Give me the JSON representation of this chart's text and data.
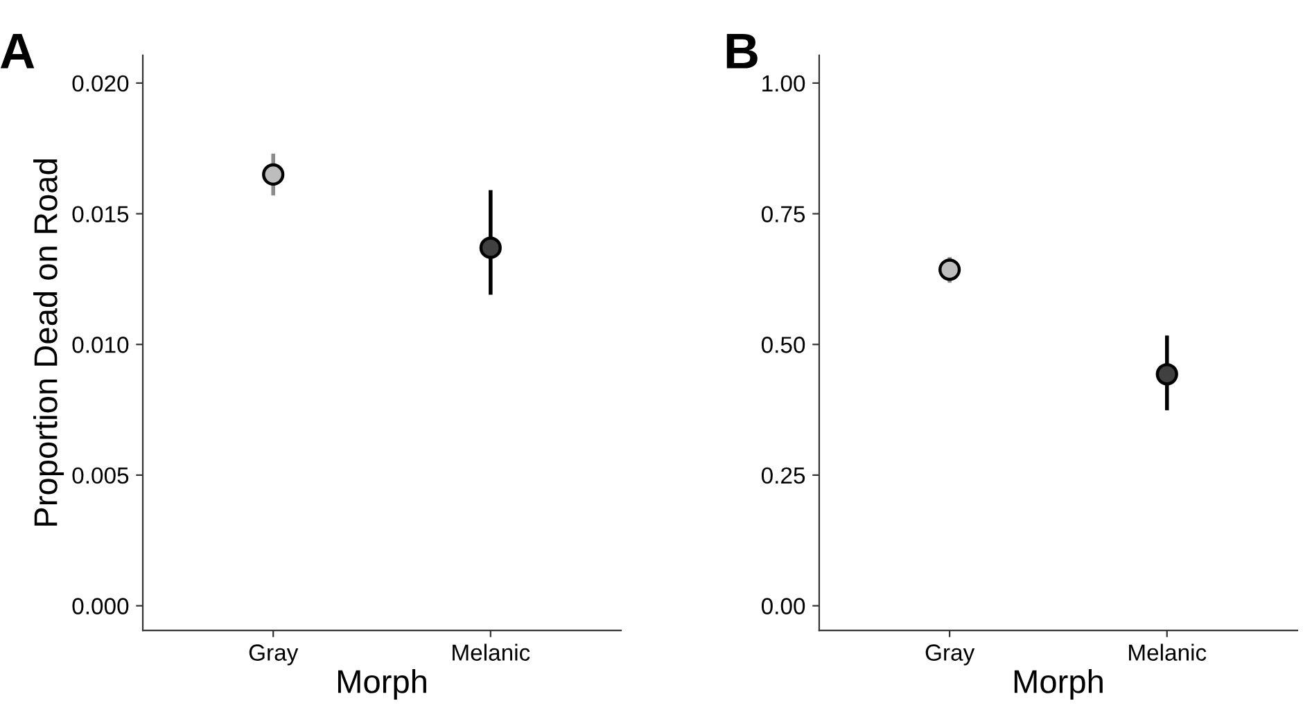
{
  "chart_data": [
    {
      "type": "scatter",
      "title": "A",
      "xlabel": "Morph",
      "ylabel": "Proportion Dead on Road",
      "categories": [
        "Gray",
        "Melanic"
      ],
      "values": [
        0.0165,
        0.0137
      ],
      "errors": [
        [
          0.0157,
          0.0173
        ],
        [
          0.0119,
          0.0159
        ]
      ],
      "colors": [
        "#bdbdbd",
        "#404040"
      ],
      "ylim": [
        -0.00094,
        0.02106
      ],
      "yticks": [
        {
          "value": 0,
          "label": "0.000"
        },
        0.005,
        {
          "value": 0.01,
          "label": "0.010"
        },
        0.015,
        {
          "value": 0.02,
          "label": "0.020"
        }
      ],
      "marker": "circle",
      "grid": false,
      "legend": false
    },
    {
      "type": "scatter",
      "title": "B",
      "xlabel": "Morph",
      "categories": [
        "Gray",
        "Melanic"
      ],
      "values": [
        0.643,
        0.443
      ],
      "errors": [
        [
          0.618,
          0.667
        ],
        [
          0.374,
          0.517
        ]
      ],
      "colors": [
        "#bdbdbd",
        "#404040"
      ],
      "ylim": [
        -0.047,
        1.053
      ],
      "yticks": [
        {
          "value": 0,
          "label": "0.00"
        },
        0.25,
        {
          "value": 0.5,
          "label": "0.50"
        },
        0.75,
        {
          "value": 1,
          "label": "1.00"
        }
      ],
      "marker": "circle",
      "grid": false,
      "legend": false
    }
  ]
}
